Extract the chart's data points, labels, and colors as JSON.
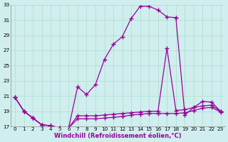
{
  "xlabel": "Windchill (Refroidissement éolien,°C)",
  "bg_color": "#d0eeee",
  "line_color": "#990099",
  "grid_color": "#aaddcc",
  "xlim": [
    -0.5,
    23.5
  ],
  "ylim": [
    17,
    33
  ],
  "yticks": [
    17,
    19,
    21,
    23,
    25,
    27,
    29,
    31,
    33
  ],
  "xticks": [
    0,
    1,
    2,
    3,
    4,
    5,
    6,
    7,
    8,
    9,
    10,
    11,
    12,
    13,
    14,
    15,
    16,
    17,
    18,
    19,
    20,
    21,
    22,
    23
  ],
  "series1_x": [
    0,
    1,
    2,
    3,
    4,
    5,
    6,
    7,
    8,
    9,
    10,
    11,
    12,
    13,
    14,
    15,
    16,
    17,
    18
  ],
  "series1_y": [
    20.8,
    19.0,
    18.1,
    17.2,
    17.1,
    16.8,
    16.8,
    22.2,
    21.2,
    22.5,
    25.8,
    27.8,
    28.8,
    31.2,
    32.8,
    32.8,
    32.3,
    31.4,
    31.3
  ],
  "series2_x": [
    0,
    1,
    2,
    3,
    4,
    5,
    6,
    7,
    8,
    9,
    10,
    11,
    12,
    13,
    14,
    15,
    16,
    17,
    18,
    19,
    20,
    21,
    22,
    23
  ],
  "series2_y": [
    20.8,
    19.0,
    18.1,
    17.2,
    17.1,
    16.8,
    16.8,
    18.4,
    18.4,
    18.4,
    18.5,
    18.6,
    18.7,
    18.8,
    18.9,
    19.0,
    19.0,
    27.3,
    19.1,
    19.2,
    19.5,
    19.7,
    19.8,
    19.0
  ],
  "series3_x": [
    0,
    1,
    2,
    3,
    4,
    5,
    6,
    7,
    8,
    9,
    10,
    11,
    12,
    13,
    14,
    15,
    16,
    17,
    18,
    19,
    20,
    21,
    22,
    23
  ],
  "series3_y": [
    20.8,
    19.0,
    18.1,
    17.2,
    17.1,
    16.8,
    16.8,
    18.0,
    18.0,
    18.0,
    18.1,
    18.2,
    18.3,
    18.5,
    18.6,
    18.7,
    18.7,
    18.7,
    18.7,
    18.8,
    19.1,
    19.4,
    19.5,
    18.9
  ],
  "series4_x": [
    18,
    19,
    20,
    21,
    22,
    23
  ],
  "series4_y": [
    31.3,
    18.5,
    19.5,
    20.3,
    20.2,
    19.0
  ],
  "marker": "+",
  "markersize": 4.0,
  "linewidth": 0.9,
  "tick_labelsize": 5.2,
  "xlabel_fontsize": 6.0
}
